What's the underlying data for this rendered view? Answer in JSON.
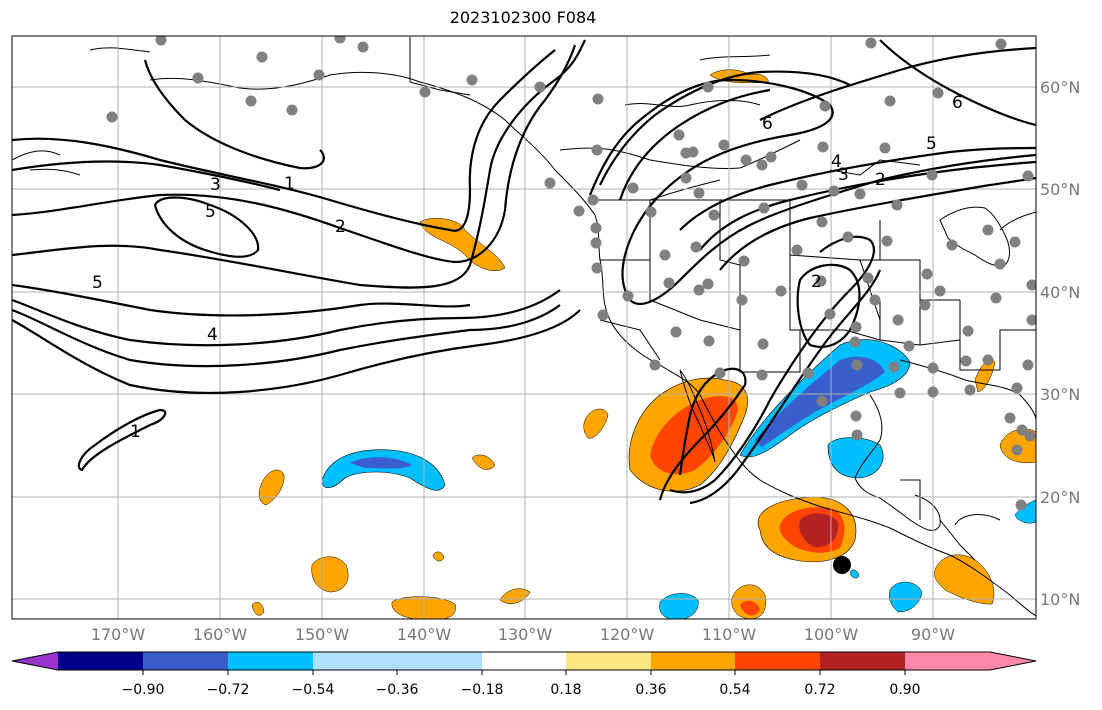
{
  "title": "2023102300 F084",
  "map": {
    "lat_labels": [
      "60°N",
      "50°N",
      "40°N",
      "30°N",
      "20°N",
      "10°N"
    ],
    "lon_labels": [
      "170°W",
      "160°W",
      "150°W",
      "140°W",
      "130°W",
      "120°W",
      "110°W",
      "100°W",
      "90°W"
    ],
    "contour_labels": [
      "1",
      "2",
      "3",
      "4",
      "5",
      "5",
      "1",
      "6",
      "6",
      "5",
      "4",
      "3",
      "2",
      "2"
    ]
  },
  "colorbar": {
    "colors": [
      "#9933cc",
      "#00008b",
      "#3a5fcd",
      "#00bfff",
      "#b0e0ff",
      "#ffffff",
      "#ffe680",
      "#ffa500",
      "#ff4500",
      "#b22222",
      "#ff88aa"
    ],
    "tick_labels": [
      "−0.90",
      "−0.72",
      "−0.54",
      "−0.36",
      "−0.18",
      "0.18",
      "0.36",
      "0.54",
      "0.72",
      "0.90"
    ]
  }
}
